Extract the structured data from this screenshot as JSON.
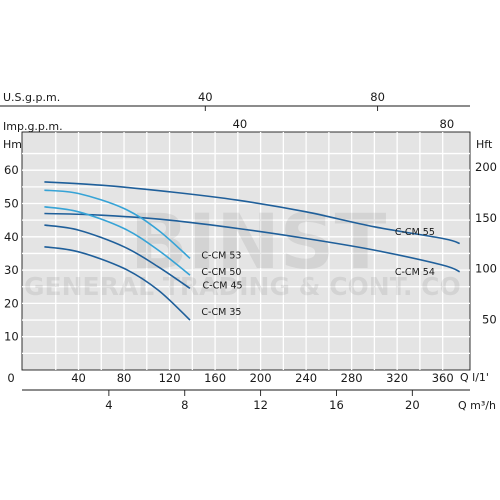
{
  "chart_data": {
    "type": "line",
    "x_unit": "Q l/1'",
    "x_ticks": [
      0,
      40,
      80,
      120,
      160,
      200,
      240,
      280,
      320,
      360
    ],
    "xlim": [
      0,
      380
    ],
    "y_unit": "Hm",
    "y_ticks": [
      10,
      20,
      30,
      40,
      50,
      60
    ],
    "ylim": [
      0,
      62
    ],
    "secondary_axes": {
      "us_gpm": {
        "label": "U.S.g.p.m.",
        "ticks": [
          40,
          80
        ]
      },
      "imp_gpm": {
        "label": "Imp.g.p.m.",
        "ticks": [
          40,
          80
        ]
      },
      "m3h": {
        "label": "Q m³/h",
        "ticks": [
          4,
          8,
          12,
          16,
          20
        ]
      },
      "hft": {
        "label": "Hft",
        "ticks": [
          50,
          100,
          150,
          200
        ]
      }
    },
    "grid": true,
    "series": [
      {
        "name": "C-CM 55",
        "color": "#1f5f9a",
        "x": [
          10,
          60,
          120,
          180,
          240,
          300,
          360,
          375
        ],
        "y": [
          56.5,
          55.5,
          53.5,
          51,
          47.5,
          43,
          39.5,
          38
        ]
      },
      {
        "name": "C-CM 54",
        "color": "#1f5f9a",
        "x": [
          10,
          60,
          120,
          180,
          240,
          300,
          360,
          375
        ],
        "y": [
          47,
          46.5,
          45,
          42.5,
          39.5,
          36,
          31.5,
          29.5
        ]
      },
      {
        "name": "C-CM 53",
        "color": "#36a3d6",
        "x": [
          10,
          40,
          80,
          110,
          138
        ],
        "y": [
          54,
          53,
          48.5,
          42,
          33.5
        ]
      },
      {
        "name": "C-CM 50",
        "color": "#36a3d6",
        "x": [
          10,
          40,
          80,
          110,
          138
        ],
        "y": [
          49,
          47.5,
          42.5,
          36,
          28.5
        ]
      },
      {
        "name": "C-CM 45",
        "color": "#1f5f9a",
        "x": [
          10,
          40,
          80,
          110,
          138
        ],
        "y": [
          43.5,
          42,
          37,
          31,
          24.5
        ]
      },
      {
        "name": "C-CM 35",
        "color": "#1f5f9a",
        "x": [
          10,
          40,
          80,
          110,
          138
        ],
        "y": [
          37,
          35.5,
          30.5,
          24,
          15
        ]
      }
    ]
  },
  "watermark": {
    "line1": "BINST",
    "line2": "GENERAL TRADING & CONT. CO"
  }
}
